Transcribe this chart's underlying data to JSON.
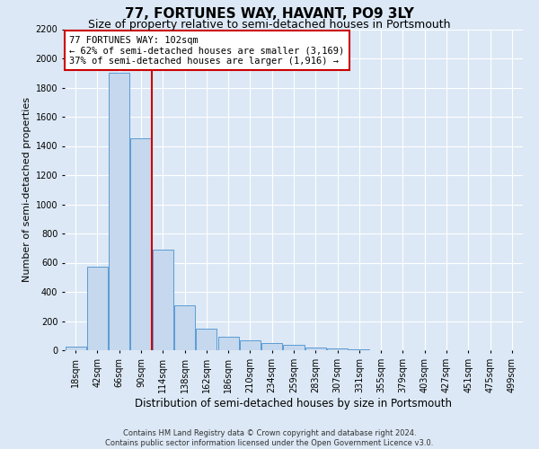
{
  "title": "77, FORTUNES WAY, HAVANT, PO9 3LY",
  "subtitle": "Size of property relative to semi-detached houses in Portsmouth",
  "xlabel": "Distribution of semi-detached houses by size in Portsmouth",
  "ylabel": "Number of semi-detached properties",
  "footer_line1": "Contains HM Land Registry data © Crown copyright and database right 2024.",
  "footer_line2": "Contains public sector information licensed under the Open Government Licence v3.0.",
  "annotation_title": "77 FORTUNES WAY: 102sqm",
  "annotation_line2": "← 62% of semi-detached houses are smaller (3,169)",
  "annotation_line3": "37% of semi-detached houses are larger (1,916) →",
  "bin_labels": [
    "18sqm",
    "42sqm",
    "66sqm",
    "90sqm",
    "114sqm",
    "138sqm",
    "162sqm",
    "186sqm",
    "210sqm",
    "234sqm",
    "259sqm",
    "283sqm",
    "307sqm",
    "331sqm",
    "355sqm",
    "379sqm",
    "403sqm",
    "427sqm",
    "451sqm",
    "475sqm",
    "499sqm"
  ],
  "bar_heights": [
    25,
    570,
    1900,
    1450,
    690,
    310,
    150,
    95,
    70,
    50,
    35,
    20,
    10,
    5,
    2,
    2,
    0,
    0,
    0,
    0,
    0
  ],
  "bar_color": "#c5d8ed",
  "bar_edge_color": "#5b9bd5",
  "vline_color": "#cc0000",
  "vline_bin_index": 4,
  "annotation_box_color": "#cc0000",
  "background_color": "#dce8f5",
  "plot_bg_color": "#dce8f5",
  "ylim": [
    0,
    2200
  ],
  "yticks": [
    0,
    200,
    400,
    600,
    800,
    1000,
    1200,
    1400,
    1600,
    1800,
    2000,
    2200
  ],
  "grid_color": "#ffffff",
  "title_fontsize": 11,
  "subtitle_fontsize": 9,
  "axis_label_fontsize": 8.5,
  "ylabel_fontsize": 8,
  "tick_fontsize": 7,
  "annotation_fontsize": 7.5,
  "footer_fontsize": 6
}
